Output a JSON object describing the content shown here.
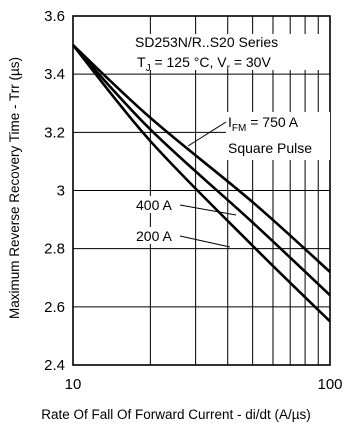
{
  "chart_data": {
    "type": "line",
    "x_scale": "log",
    "y_scale": "linear",
    "xlim": [
      10,
      100
    ],
    "ylim": [
      2.4,
      3.6
    ],
    "grid": true,
    "xlabel": "Rate Of Fall Of Forward Current - di/dt (A/µs)",
    "ylabel": "Maximum Reverse Recovery Time - Trr (µs)",
    "x_ticks": [
      "10",
      "100"
    ],
    "y_ticks": [
      "2.4",
      "2.6",
      "2.8",
      "3",
      "3.2",
      "3.4",
      "3.6"
    ],
    "series": [
      {
        "name": "200 A",
        "x": [
          10,
          20,
          50,
          100
        ],
        "y": [
          3.5,
          3.17,
          2.81,
          2.55
        ]
      },
      {
        "name": "400 A",
        "x": [
          10,
          20,
          50,
          100
        ],
        "y": [
          3.5,
          3.21,
          2.89,
          2.64
        ]
      },
      {
        "name": "750 A",
        "x": [
          10,
          20,
          50,
          100
        ],
        "y": [
          3.5,
          3.25,
          2.96,
          2.72
        ]
      }
    ],
    "annotations": {
      "title_line1": "SD253N/R..S20 Series",
      "tj_symbol": "T",
      "tj_sub": "J",
      "tj_value": " = 125 °C, V",
      "vr_sub": "r",
      "vr_value": "  = 30V",
      "ifm_symbol": "I",
      "ifm_sub": "FM",
      "ifm_value": " = 750 A",
      "square_pulse": "Square Pulse",
      "label_400": "400 A",
      "label_200": "200 A"
    }
  }
}
